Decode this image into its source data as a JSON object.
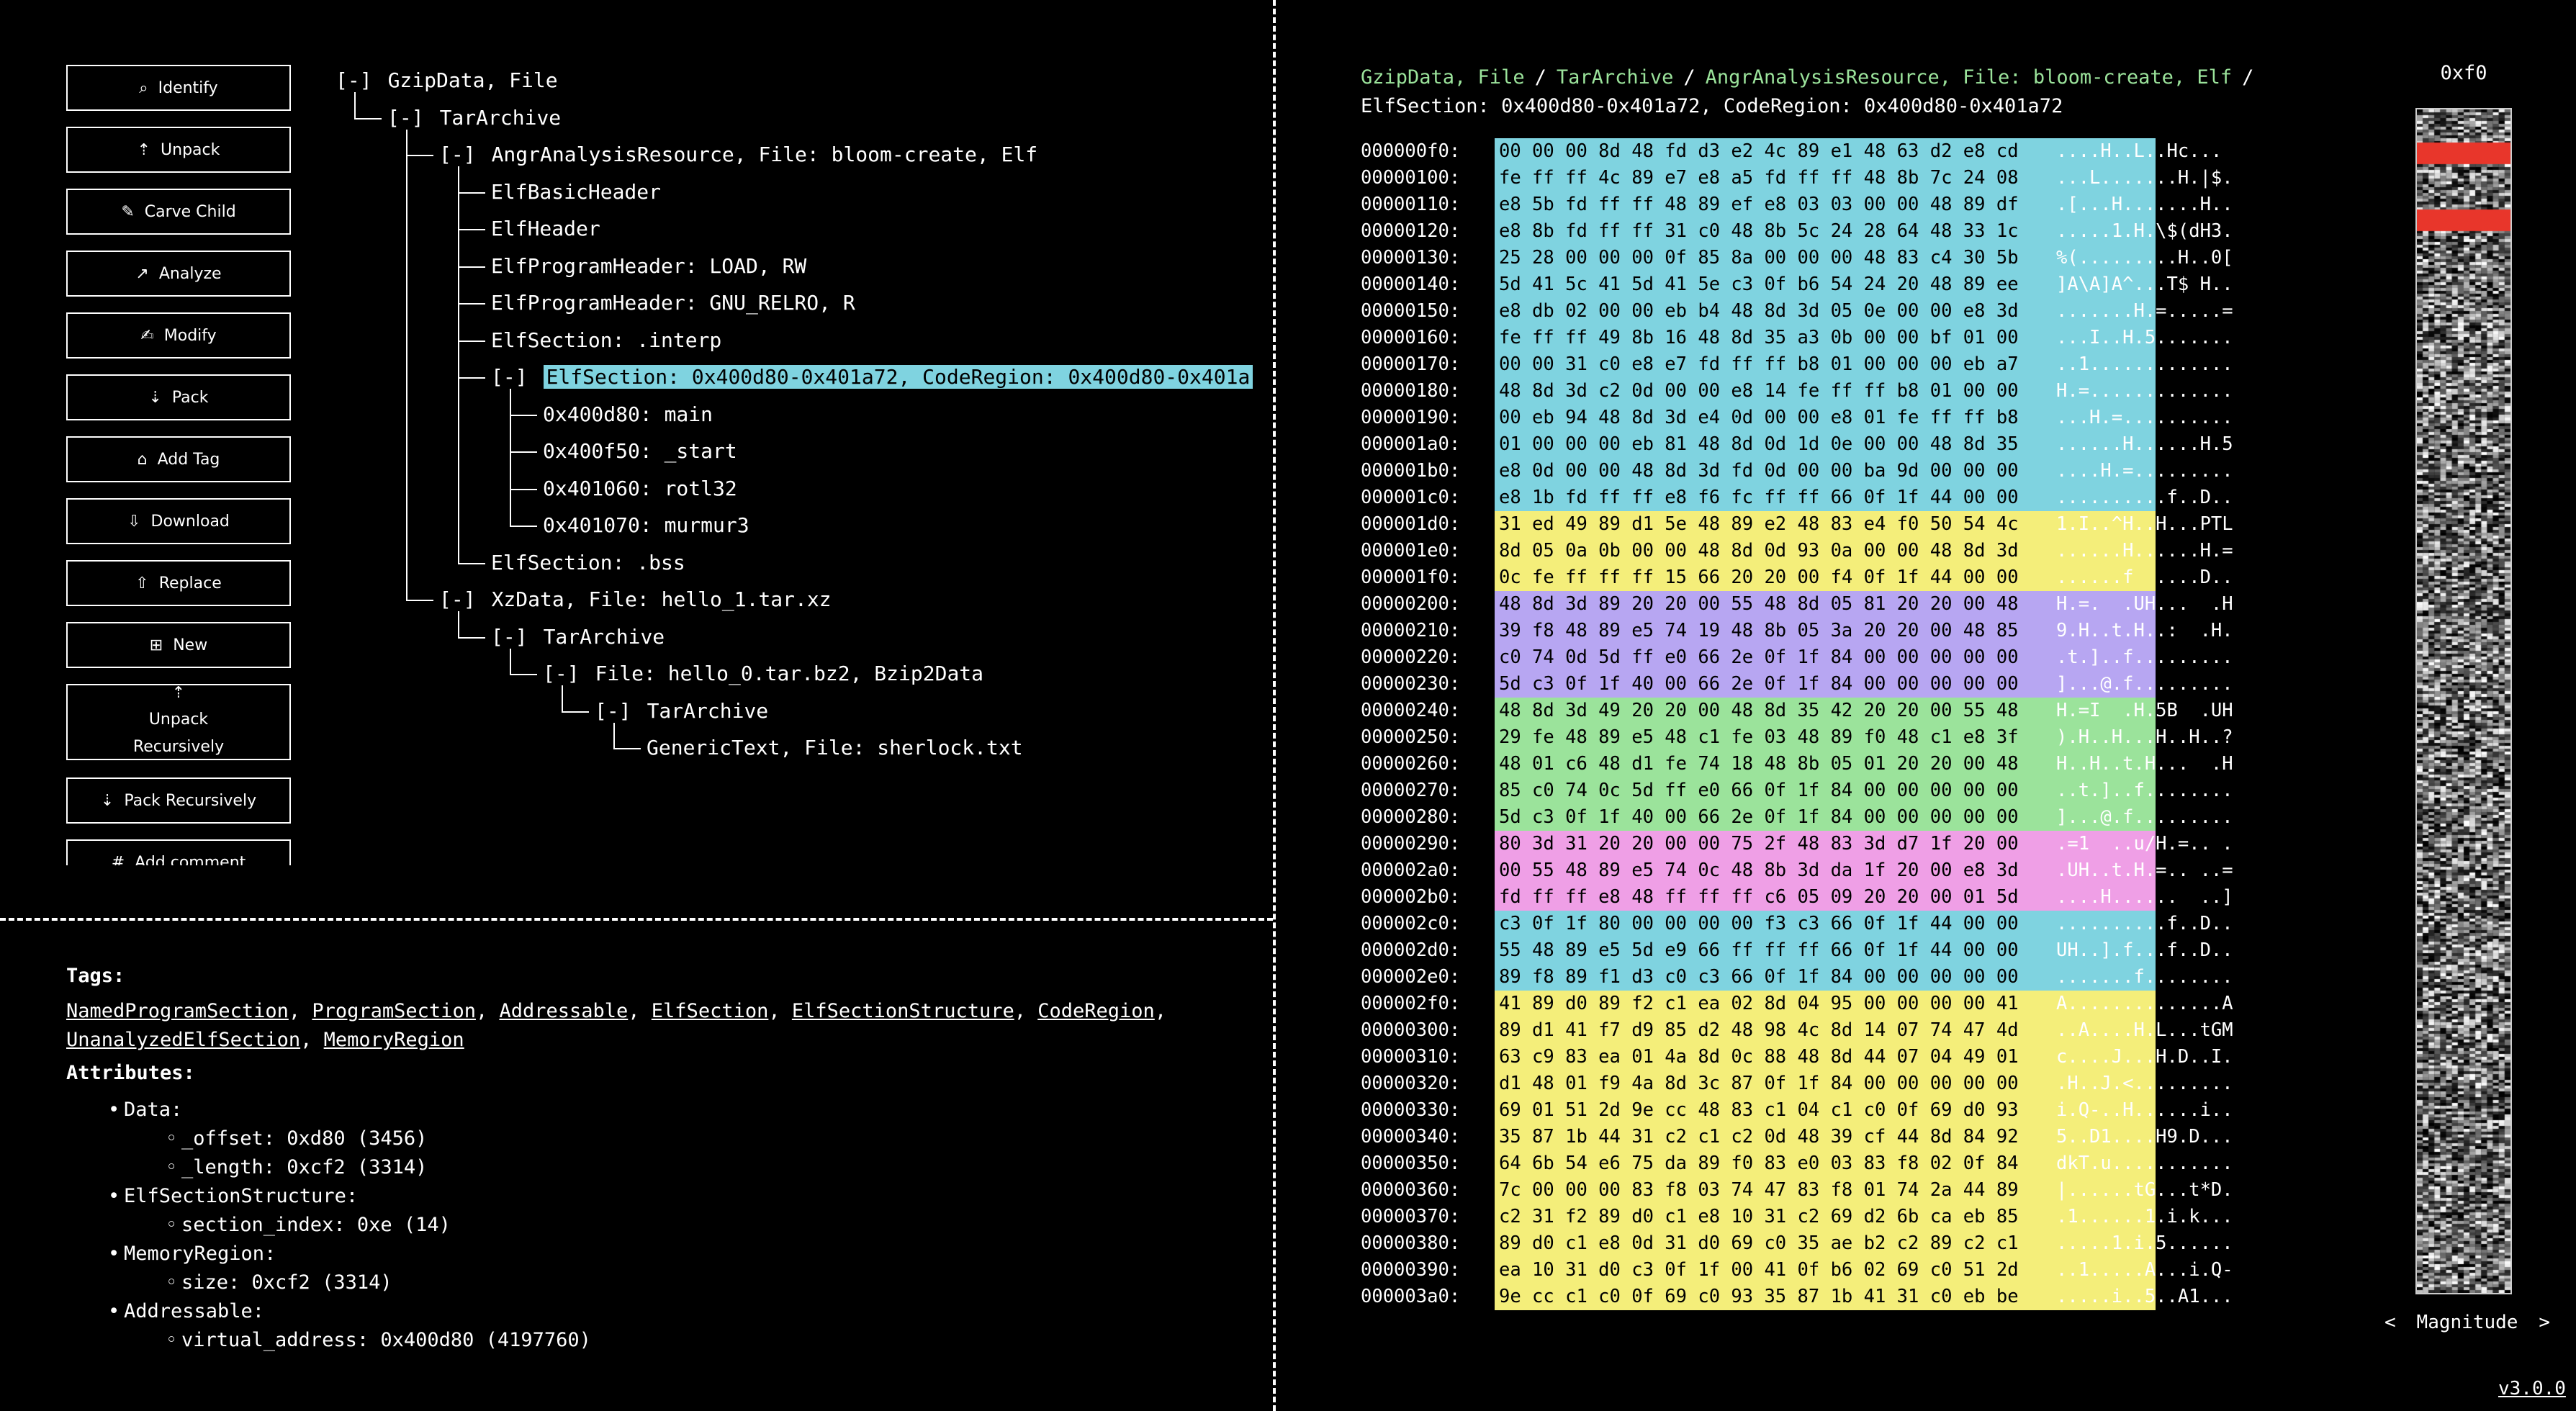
{
  "buttons": [
    {
      "label": "Identify",
      "icon": "search-icon",
      "glyph": "⌕"
    },
    {
      "label": "Unpack",
      "icon": "unpack-icon",
      "glyph": "⇡"
    },
    {
      "label": "Carve Child",
      "icon": "carve-icon",
      "glyph": "✎"
    },
    {
      "label": "Analyze",
      "icon": "analyze-icon",
      "glyph": "↗"
    },
    {
      "label": "Modify",
      "icon": "modify-icon",
      "glyph": "✍"
    },
    {
      "label": "Pack",
      "icon": "pack-icon",
      "glyph": "⇣"
    },
    {
      "label": "Add Tag",
      "icon": "tag-icon",
      "glyph": "⌂"
    },
    {
      "label": "Download",
      "icon": "download-icon",
      "glyph": "⇩"
    },
    {
      "label": "Replace",
      "icon": "replace-icon",
      "glyph": "⇧"
    },
    {
      "label": "New",
      "icon": "new-file-icon",
      "glyph": "⊞"
    },
    {
      "label": "Unpack Recursively",
      "icon": "unpack-recursive-icon",
      "glyph": "⇡"
    },
    {
      "label": "Pack Recursively",
      "icon": "pack-recursive-icon",
      "glyph": "⇣"
    },
    {
      "label": "Add comment",
      "icon": "comment-icon",
      "glyph": "#"
    }
  ],
  "tree": [
    {
      "toggle": "[-]",
      "label": "GzipData, File",
      "depth": 0,
      "selected": false
    },
    {
      "toggle": "[-]",
      "label": "TarArchive",
      "depth": 1,
      "selected": false
    },
    {
      "toggle": "[-]",
      "label": "AngrAnalysisResource, File: bloom-create, Elf",
      "depth": 2,
      "selected": false
    },
    {
      "toggle": "",
      "label": "ElfBasicHeader",
      "depth": 3,
      "selected": false
    },
    {
      "toggle": "",
      "label": "ElfHeader",
      "depth": 3,
      "selected": false
    },
    {
      "toggle": "",
      "label": "ElfProgramHeader: LOAD, RW",
      "depth": 3,
      "selected": false
    },
    {
      "toggle": "",
      "label": "ElfProgramHeader: GNU_RELRO, R",
      "depth": 3,
      "selected": false
    },
    {
      "toggle": "",
      "label": "ElfSection: .interp",
      "depth": 3,
      "selected": false
    },
    {
      "toggle": "[-]",
      "label": "ElfSection: 0x400d80-0x401a72, CodeRegion: 0x400d80-0x401a",
      "depth": 3,
      "selected": true
    },
    {
      "toggle": "",
      "label": "0x400d80: main",
      "depth": 4,
      "selected": false
    },
    {
      "toggle": "",
      "label": "0x400f50: _start",
      "depth": 4,
      "selected": false
    },
    {
      "toggle": "",
      "label": "0x401060: rotl32",
      "depth": 4,
      "selected": false
    },
    {
      "toggle": "",
      "label": "0x401070: murmur3",
      "depth": 4,
      "selected": false
    },
    {
      "toggle": "",
      "label": "ElfSection: .bss",
      "depth": 3,
      "selected": false
    },
    {
      "toggle": "[-]",
      "label": "XzData, File: hello_1.tar.xz",
      "depth": 2,
      "selected": false
    },
    {
      "toggle": "[-]",
      "label": "TarArchive",
      "depth": 3,
      "selected": false
    },
    {
      "toggle": "[-]",
      "label": "File: hello_0.tar.bz2, Bzip2Data",
      "depth": 4,
      "selected": false
    },
    {
      "toggle": "[-]",
      "label": "TarArchive",
      "depth": 5,
      "selected": false
    },
    {
      "toggle": "",
      "label": "GenericText, File: sherlock.txt",
      "depth": 6,
      "selected": false
    }
  ],
  "tags_header": "Tags:",
  "tags": [
    "NamedProgramSection",
    "ProgramSection",
    "Addressable",
    "ElfSection",
    "ElfSectionStructure",
    "CodeRegion",
    "UnanalyzedElfSection",
    "MemoryRegion"
  ],
  "attributes_header": "Attributes:",
  "attributes": [
    {
      "name": "Data:",
      "fields": [
        "_offset: 0xd80 (3456)",
        "_length: 0xcf2 (3314)"
      ]
    },
    {
      "name": "ElfSectionStructure:",
      "fields": [
        "section_index: 0xe (14)"
      ]
    },
    {
      "name": "MemoryRegion:",
      "fields": [
        "size: 0xcf2 (3314)"
      ]
    },
    {
      "name": "Addressable:",
      "fields": [
        "virtual_address: 0x400d80 (4197760)"
      ]
    }
  ],
  "breadcrumb": {
    "parts": [
      "GzipData, File",
      "TarArchive",
      "AngrAnalysisResource, File: bloom-create, Elf"
    ],
    "separator": "/",
    "current": "ElfSection: 0x400d80-0x401a72, CodeRegion: 0x400d80-0x401a72"
  },
  "colors": {
    "cyan": "#7fd3e0",
    "yellow": "#f4ee7a",
    "purple": "#b7a6f2",
    "green": "#9be39b",
    "pink": "#ef9fe6",
    "breadcrumb_green": "#9be39b",
    "magnitude_marker": "#e8362b"
  },
  "hex_rows": [
    {
      "offset": "000000f0:",
      "bytes": "00 00 00 8d 48 fd d3 e2 4c 89 e1 48 63 d2 e8 cd",
      "ascii": "....H..L..Hc...",
      "color": "cyan"
    },
    {
      "offset": "00000100:",
      "bytes": "fe ff ff 4c 89 e7 e8 a5 fd ff ff 48 8b 7c 24 08",
      "ascii": "...L.......H.|$.",
      "color": "cyan"
    },
    {
      "offset": "00000110:",
      "bytes": "e8 5b fd ff ff 48 89 ef e8 03 03 00 00 48 89 df",
      "ascii": ".[...H.......H..",
      "color": "cyan"
    },
    {
      "offset": "00000120:",
      "bytes": "e8 8b fd ff ff 31 c0 48 8b 5c 24 28 64 48 33 1c",
      "ascii": ".....1.H.\\$(dH3.",
      "color": "cyan"
    },
    {
      "offset": "00000130:",
      "bytes": "25 28 00 00 00 0f 85 8a 00 00 00 48 83 c4 30 5b",
      "ascii": "%(.........H..0[",
      "color": "cyan"
    },
    {
      "offset": "00000140:",
      "bytes": "5d 41 5c 41 5d 41 5e c3 0f b6 54 24 20 48 89 ee",
      "ascii": "]A\\A]A^...T$ H..",
      "color": "cyan"
    },
    {
      "offset": "00000150:",
      "bytes": "e8 db 02 00 00 eb b4 48 8d 3d 05 0e 00 00 e8 3d",
      "ascii": ".......H.=.....=",
      "color": "cyan"
    },
    {
      "offset": "00000160:",
      "bytes": "fe ff ff 49 8b 16 48 8d 35 a3 0b 00 00 bf 01 00",
      "ascii": "...I..H.5.......",
      "color": "cyan"
    },
    {
      "offset": "00000170:",
      "bytes": "00 00 31 c0 e8 e7 fd ff ff b8 01 00 00 00 eb a7",
      "ascii": "..1.............",
      "color": "cyan"
    },
    {
      "offset": "00000180:",
      "bytes": "48 8d 3d c2 0d 00 00 e8 14 fe ff ff b8 01 00 00",
      "ascii": "H.=.............",
      "color": "cyan"
    },
    {
      "offset": "00000190:",
      "bytes": "00 eb 94 48 8d 3d e4 0d 00 00 e8 01 fe ff ff b8",
      "ascii": "...H.=..........",
      "color": "cyan"
    },
    {
      "offset": "000001a0:",
      "bytes": "01 00 00 00 eb 81 48 8d 0d 1d 0e 00 00 48 8d 35",
      "ascii": "......H......H.5",
      "color": "cyan"
    },
    {
      "offset": "000001b0:",
      "bytes": "e8 0d 00 00 48 8d 3d fd 0d 00 00 ba 9d 00 00 00",
      "ascii": "....H.=.........",
      "color": "cyan"
    },
    {
      "offset": "000001c0:",
      "bytes": "e8 1b fd ff ff e8 f6 fc ff ff 66 0f 1f 44 00 00",
      "ascii": "..........f..D..",
      "color": "cyan"
    },
    {
      "offset": "000001d0:",
      "bytes": "31 ed 49 89 d1 5e 48 89 e2 48 83 e4 f0 50 54 4c",
      "ascii": "1.I..^H..H...PTL",
      "color": "yellow"
    },
    {
      "offset": "000001e0:",
      "bytes": "8d 05 0a 0b 00 00 48 8d 0d 93 0a 00 00 48 8d 3d",
      "ascii": "......H......H.=",
      "color": "yellow"
    },
    {
      "offset": "000001f0:",
      "bytes": "0c fe ff ff ff 15 66 20 20 00 f4 0f 1f 44 00 00",
      "ascii": "......f  ....D..",
      "color": "yellow"
    },
    {
      "offset": "00000200:",
      "bytes": "48 8d 3d 89 20 20 00 55 48 8d 05 81 20 20 00 48",
      "ascii": "H.=.  .UH...  .H",
      "color": "purple"
    },
    {
      "offset": "00000210:",
      "bytes": "39 f8 48 89 e5 74 19 48 8b 05 3a 20 20 00 48 85",
      "ascii": "9.H..t.H..:  .H.",
      "color": "purple"
    },
    {
      "offset": "00000220:",
      "bytes": "c0 74 0d 5d ff e0 66 2e 0f 1f 84 00 00 00 00 00",
      "ascii": ".t.]..f.........",
      "color": "purple"
    },
    {
      "offset": "00000230:",
      "bytes": "5d c3 0f 1f 40 00 66 2e 0f 1f 84 00 00 00 00 00",
      "ascii": "]...@.f.........",
      "color": "purple"
    },
    {
      "offset": "00000240:",
      "bytes": "48 8d 3d 49 20 20 00 48 8d 35 42 20 20 00 55 48",
      "ascii": "H.=I  .H.5B  .UH",
      "color": "green"
    },
    {
      "offset": "00000250:",
      "bytes": "29 fe 48 89 e5 48 c1 fe 03 48 89 f0 48 c1 e8 3f",
      "ascii": ").H..H...H..H..?",
      "color": "green"
    },
    {
      "offset": "00000260:",
      "bytes": "48 01 c6 48 d1 fe 74 18 48 8b 05 01 20 20 00 48",
      "ascii": "H..H..t.H...  .H",
      "color": "green"
    },
    {
      "offset": "00000270:",
      "bytes": "85 c0 74 0c 5d ff e0 66 0f 1f 84 00 00 00 00 00",
      "ascii": "..t.]..f........",
      "color": "green"
    },
    {
      "offset": "00000280:",
      "bytes": "5d c3 0f 1f 40 00 66 2e 0f 1f 84 00 00 00 00 00",
      "ascii": "]...@.f.........",
      "color": "green"
    },
    {
      "offset": "00000290:",
      "bytes": "80 3d 31 20 20 00 00 75 2f 48 83 3d d7 1f 20 00",
      "ascii": ".=1  ..u/H.=.. .",
      "color": "pink"
    },
    {
      "offset": "000002a0:",
      "bytes": "00 55 48 89 e5 74 0c 48 8b 3d da 1f 20 00 e8 3d",
      "ascii": ".UH..t.H.=.. ..=",
      "color": "pink"
    },
    {
      "offset": "000002b0:",
      "bytes": "fd ff ff e8 48 ff ff ff c6 05 09 20 20 00 01 5d",
      "ascii": "....H......  ..]",
      "color": "pink"
    },
    {
      "offset": "000002c0:",
      "bytes": "c3 0f 1f 80 00 00 00 00 f3 c3 66 0f 1f 44 00 00",
      "ascii": "..........f..D..",
      "color": "cyan"
    },
    {
      "offset": "000002d0:",
      "bytes": "55 48 89 e5 5d e9 66 ff ff ff 66 0f 1f 44 00 00",
      "ascii": "UH..].f...f..D..",
      "color": "cyan"
    },
    {
      "offset": "000002e0:",
      "bytes": "89 f8 89 f1 d3 c0 c3 66 0f 1f 84 00 00 00 00 00",
      "ascii": ".......f........",
      "color": "cyan"
    },
    {
      "offset": "000002f0:",
      "bytes": "41 89 d0 89 f2 c1 ea 02 8d 04 95 00 00 00 00 41",
      "ascii": "A..............A",
      "color": "yellow"
    },
    {
      "offset": "00000300:",
      "bytes": "89 d1 41 f7 d9 85 d2 48 98 4c 8d 14 07 74 47 4d",
      "ascii": "..A....H.L...tGM",
      "color": "yellow"
    },
    {
      "offset": "00000310:",
      "bytes": "63 c9 83 ea 01 4a 8d 0c 88 48 8d 44 07 04 49 01",
      "ascii": "c....J...H.D..I.",
      "color": "yellow"
    },
    {
      "offset": "00000320:",
      "bytes": "d1 48 01 f9 4a 8d 3c 87 0f 1f 84 00 00 00 00 00",
      "ascii": ".H..J.<.........",
      "color": "yellow"
    },
    {
      "offset": "00000330:",
      "bytes": "69 01 51 2d 9e cc 48 83 c1 04 c1 c0 0f 69 d0 93",
      "ascii": "i.Q-..H......i..",
      "color": "yellow"
    },
    {
      "offset": "00000340:",
      "bytes": "35 87 1b 44 31 c2 c1 c2 0d 48 39 cf 44 8d 84 92",
      "ascii": "5..D1....H9.D...",
      "color": "yellow"
    },
    {
      "offset": "00000350:",
      "bytes": "64 6b 54 e6 75 da 89 f0 83 e0 03 83 f8 02 0f 84",
      "ascii": "dkT.u...........",
      "color": "yellow"
    },
    {
      "offset": "00000360:",
      "bytes": "7c 00 00 00 83 f8 03 74 47 83 f8 01 74 2a 44 89",
      "ascii": "|......tG...t*D.",
      "color": "yellow"
    },
    {
      "offset": "00000370:",
      "bytes": "c2 31 f2 89 d0 c1 e8 10 31 c2 69 d2 6b ca eb 85",
      "ascii": ".1......1.i.k...",
      "color": "yellow"
    },
    {
      "offset": "00000380:",
      "bytes": "89 d0 c1 e8 0d 31 d0 69 c0 35 ae b2 c2 89 c2 c1",
      "ascii": ".....1.i.5......",
      "color": "yellow"
    },
    {
      "offset": "00000390:",
      "bytes": "ea 10 31 d0 c3 0f 1f 00 41 0f b6 02 69 c0 51 2d",
      "ascii": "..1.....A...i.Q-",
      "color": "yellow"
    },
    {
      "offset": "000003a0:",
      "bytes": "9e cc c1 c0 0f 69 c0 93 35 87 1b 41 31 c0 eb be",
      "ascii": ".....i..5..A1...",
      "color": "yellow"
    }
  ],
  "magnitude": {
    "title": "0xf0",
    "nav_prev": "<",
    "label": "Magnitude",
    "nav_next": ">",
    "highlight_fraction": [
      0.028,
      0.065
    ]
  },
  "version": "v3.0.0"
}
